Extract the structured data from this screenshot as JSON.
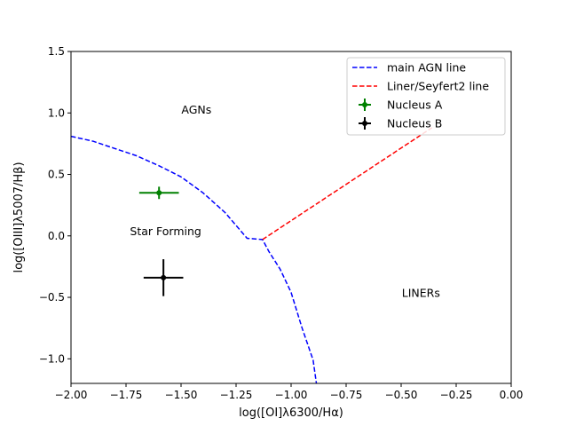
{
  "chart_data": {
    "type": "scatter",
    "title": "",
    "xlabel": "log([OI]λ6300/Hα)",
    "ylabel": "log([OIII]λ5007/Hβ)",
    "xlim": [
      -2.0,
      0.0
    ],
    "ylim": [
      -1.2,
      1.5
    ],
    "xticks": [
      -2.0,
      -1.75,
      -1.5,
      -1.25,
      -1.0,
      -0.75,
      -0.5,
      -0.25,
      0.0
    ],
    "xtick_labels": [
      "−2.00",
      "−1.75",
      "−1.50",
      "−1.25",
      "−1.00",
      "−0.75",
      "−0.50",
      "−0.25",
      "0.00"
    ],
    "yticks": [
      1.5,
      1.0,
      0.5,
      0.0,
      -0.5,
      -1.0
    ],
    "ytick_labels": [
      "1.5",
      "1.0",
      "0.5",
      "0.0",
      "−0.5",
      "−1.0"
    ],
    "grid": false,
    "legend_position": "top-right",
    "lines": [
      {
        "name": "main AGN line",
        "color": "#0000ff",
        "style": "dashed",
        "x": [
          -2.0,
          -1.9,
          -1.8,
          -1.7,
          -1.6,
          -1.5,
          -1.4,
          -1.3,
          -1.2,
          -1.13,
          -1.1,
          -1.05,
          -1.0,
          -0.95,
          -0.9,
          -0.885
        ],
        "y": [
          0.81,
          0.77,
          0.71,
          0.65,
          0.57,
          0.48,
          0.35,
          0.19,
          -0.02,
          -0.03,
          -0.13,
          -0.27,
          -0.46,
          -0.75,
          -1.01,
          -1.2
        ]
      },
      {
        "name": "Liner/Seyfert2 line",
        "color": "#ff0000",
        "style": "dashed",
        "x": [
          -1.13,
          -0.36
        ],
        "y": [
          -0.03,
          0.88
        ]
      }
    ],
    "points": [
      {
        "name": "Nucleus A",
        "color": "#008000",
        "x": -1.6,
        "y": 0.35,
        "xerr": 0.09,
        "yerr": 0.05
      },
      {
        "name": "Nucleus B",
        "color": "#000000",
        "x": -1.58,
        "y": -0.34,
        "xerr": 0.09,
        "yerr": 0.15
      }
    ],
    "annotations": [
      {
        "text": "AGNs",
        "x": -1.43,
        "y": 1.02
      },
      {
        "text": "Star Forming",
        "x": -1.57,
        "y": 0.03
      },
      {
        "text": "LINERs",
        "x": -0.41,
        "y": -0.47
      }
    ]
  }
}
